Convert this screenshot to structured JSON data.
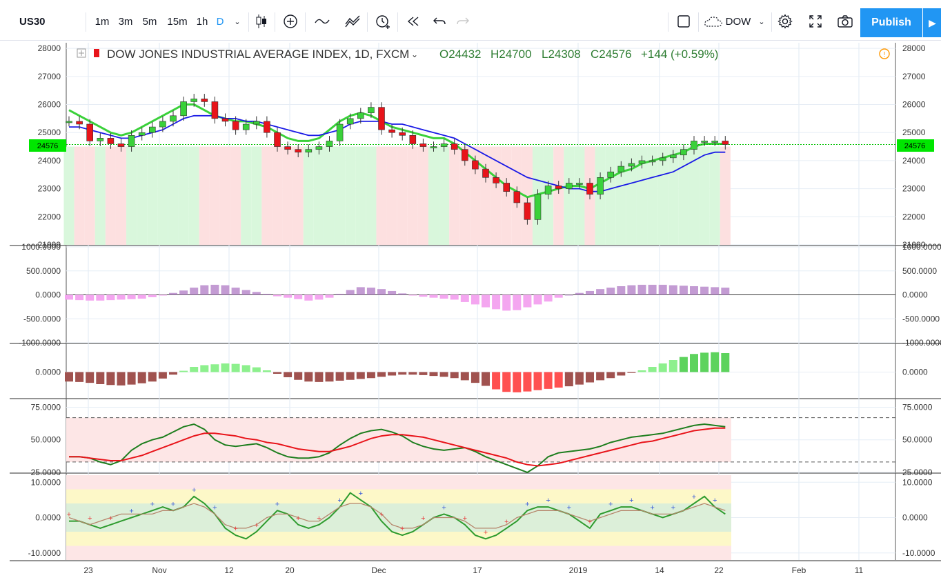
{
  "toolbar": {
    "symbol": "US30",
    "intervals": [
      "1m",
      "3m",
      "5m",
      "15m",
      "1h",
      "D"
    ],
    "active_interval": "D",
    "compare_symbol": "DOW",
    "publish_label": "Publish"
  },
  "legend": {
    "title": "DOW JONES INDUSTRIAL AVERAGE INDEX, 1D, FXCM",
    "open_label": "O24432",
    "high_label": "H24700",
    "low_label": "L24308",
    "close_label": "C24576",
    "change_label": "+144 (+0.59%)"
  },
  "price_badge": "24576",
  "x_axis_labels": [
    "23",
    "Nov",
    "12",
    "20",
    "Dec",
    "17",
    "2019",
    "14",
    "22",
    "Feb",
    "11"
  ],
  "colors": {
    "up": "#3ad13a",
    "down": "#e8141a",
    "accent": "#2196f3",
    "badge": "#00e600"
  },
  "chart_data": [
    {
      "type": "line",
      "pane": "price",
      "ylim": [
        21000,
        28200
      ],
      "y_ticks": [
        "28000",
        "27000",
        "26000",
        "25000",
        "24000",
        "23000",
        "22000",
        "21000"
      ],
      "candles_close": [
        25400,
        25300,
        24700,
        24800,
        24600,
        24500,
        24900,
        25000,
        25200,
        25400,
        25600,
        26100,
        26200,
        26100,
        25500,
        25400,
        25100,
        25300,
        25400,
        25000,
        24500,
        24400,
        24300,
        24400,
        24500,
        24700,
        25300,
        25500,
        25700,
        25900,
        25100,
        25000,
        24900,
        24600,
        24500,
        24500,
        24600,
        24400,
        24000,
        23700,
        23400,
        23200,
        22900,
        22500,
        21900,
        22800,
        23100,
        23000,
        23200,
        23200,
        22800,
        23400,
        23600,
        23800,
        23900,
        24000,
        24000,
        24100,
        24200,
        24400,
        24700,
        24700,
        24700,
        24576
      ],
      "series": [
        {
          "name": "",
          "values": [
            25800,
            25600,
            25400,
            25200,
            25000,
            24900,
            25000,
            25200,
            25400,
            25600,
            25800,
            26000,
            26000,
            25800,
            25600,
            25500,
            25400,
            25400,
            25300,
            25200,
            25000,
            24800,
            24700,
            24700,
            24800,
            25100,
            25400,
            25600,
            25700,
            25600,
            25400,
            25200,
            25100,
            25000,
            24900,
            24800,
            24800,
            24600,
            24300,
            24000,
            23700,
            23400,
            23100,
            22900,
            22700,
            22800,
            22900,
            23000,
            23100,
            23100,
            23000,
            23200,
            23400,
            23600,
            23700,
            23900,
            24000,
            24100,
            24200,
            24300,
            24500,
            24600,
            24600,
            24600
          ]
        },
        {
          "name": "",
          "values": [
            25200,
            25200,
            25100,
            25000,
            24900,
            24800,
            24800,
            24900,
            25000,
            25100,
            25300,
            25500,
            25600,
            25600,
            25600,
            25500,
            25500,
            25400,
            25400,
            25300,
            25200,
            25100,
            25000,
            24900,
            24900,
            25000,
            25100,
            25300,
            25400,
            25400,
            25400,
            25300,
            25300,
            25200,
            25100,
            25000,
            24900,
            24800,
            24600,
            24400,
            24200,
            24000,
            23800,
            23600,
            23400,
            23300,
            23200,
            23100,
            23000,
            23000,
            22900,
            22900,
            23000,
            23100,
            23200,
            23300,
            23400,
            23500,
            23600,
            23800,
            24000,
            24200,
            24300,
            24300
          ]
        }
      ]
    },
    {
      "type": "bar",
      "pane": "macd",
      "ylim": [
        -1000,
        1000
      ],
      "y_ticks": [
        "1000.0000",
        "500.0000",
        "0.0000",
        "-500.0000",
        "-1000.0000"
      ],
      "values": [
        -100,
        -110,
        -120,
        -120,
        -110,
        -100,
        -90,
        -80,
        -50,
        -10,
        40,
        90,
        150,
        200,
        210,
        200,
        150,
        100,
        60,
        20,
        -30,
        -60,
        -90,
        -120,
        -100,
        -60,
        20,
        100,
        160,
        150,
        120,
        80,
        30,
        -10,
        -40,
        -60,
        -80,
        -100,
        -150,
        -200,
        -260,
        -300,
        -330,
        -320,
        -260,
        -200,
        -140,
        -60,
        0,
        40,
        80,
        120,
        150,
        180,
        200,
        210,
        210,
        210,
        200,
        190,
        180,
        170,
        160,
        150
      ]
    },
    {
      "type": "bar",
      "pane": "momentum",
      "ylim": [
        -600,
        600
      ],
      "y_ticks": [
        "0.0000"
      ],
      "values": [
        -220,
        -230,
        -250,
        -280,
        -300,
        -310,
        -290,
        -260,
        -220,
        -150,
        -60,
        30,
        120,
        160,
        180,
        200,
        190,
        160,
        110,
        40,
        -40,
        -120,
        -180,
        -220,
        -230,
        -220,
        -200,
        -180,
        -160,
        -140,
        -110,
        -80,
        -60,
        -60,
        -70,
        -90,
        -110,
        -140,
        -190,
        -250,
        -320,
        -400,
        -460,
        -470,
        -450,
        -420,
        -390,
        -360,
        -330,
        -290,
        -240,
        -190,
        -140,
        -80,
        -20,
        40,
        120,
        200,
        280,
        350,
        420,
        450,
        460,
        440
      ]
    },
    {
      "type": "line",
      "pane": "oscillator",
      "ylim": [
        25,
        80
      ],
      "y_ticks": [
        "75.0000",
        "50.0000",
        "25.0000"
      ],
      "series": [
        {
          "name": "",
          "values": [
            37,
            37,
            36,
            33,
            31,
            34,
            42,
            47,
            50,
            52,
            56,
            60,
            62,
            58,
            50,
            46,
            45,
            46,
            47,
            44,
            40,
            37,
            36,
            36,
            37,
            40,
            46,
            51,
            55,
            57,
            58,
            56,
            53,
            48,
            45,
            43,
            42,
            43,
            44,
            41,
            37,
            34,
            31,
            28,
            25,
            30,
            37,
            40,
            41,
            42,
            43,
            45,
            48,
            50,
            52,
            53,
            54,
            55,
            57,
            59,
            61,
            62,
            61,
            60
          ]
        },
        {
          "name": "",
          "values": [
            37,
            37,
            36,
            35,
            34,
            34,
            36,
            38,
            41,
            44,
            47,
            50,
            53,
            55,
            55,
            54,
            53,
            51,
            50,
            48,
            47,
            45,
            43,
            42,
            41,
            41,
            43,
            45,
            48,
            51,
            53,
            54,
            54,
            53,
            52,
            50,
            48,
            46,
            44,
            42,
            40,
            38,
            36,
            33,
            31,
            30,
            31,
            32,
            34,
            36,
            38,
            40,
            42,
            44,
            46,
            48,
            49,
            51,
            53,
            55,
            57,
            58,
            59,
            59
          ]
        }
      ]
    },
    {
      "type": "line",
      "pane": "cycle",
      "ylim": [
        -12,
        12
      ],
      "y_ticks": [
        "10.0000",
        "0.0000",
        "-10.0000"
      ],
      "series": [
        {
          "name": "",
          "values": [
            -1,
            -1,
            -2,
            -3,
            -2,
            -1,
            0,
            1,
            2,
            3,
            2,
            3,
            6,
            4,
            1,
            -3,
            -5,
            -6,
            -4,
            -1,
            2,
            1,
            -2,
            -3,
            -2,
            0,
            3,
            7,
            5,
            3,
            -1,
            -4,
            -5,
            -4,
            -2,
            0,
            1,
            0,
            -2,
            -5,
            -6,
            -5,
            -3,
            -1,
            2,
            3,
            3,
            2,
            1,
            -1,
            -3,
            1,
            2,
            3,
            3,
            2,
            1,
            0,
            1,
            2,
            4,
            6,
            3,
            1
          ]
        },
        {
          "name": "",
          "values": [
            0,
            -1,
            -2,
            -1,
            0,
            1,
            1,
            1,
            1,
            2,
            2,
            3,
            4,
            3,
            1,
            -2,
            -3,
            -3,
            -2,
            0,
            1,
            1,
            0,
            -1,
            -1,
            1,
            3,
            4,
            4,
            3,
            1,
            -2,
            -3,
            -3,
            -2,
            0,
            0,
            0,
            -1,
            -3,
            -3,
            -3,
            -2,
            0,
            1,
            2,
            2,
            2,
            1,
            0,
            -1,
            0,
            1,
            2,
            2,
            2,
            1,
            1,
            1,
            2,
            3,
            4,
            3,
            2
          ]
        }
      ]
    }
  ]
}
